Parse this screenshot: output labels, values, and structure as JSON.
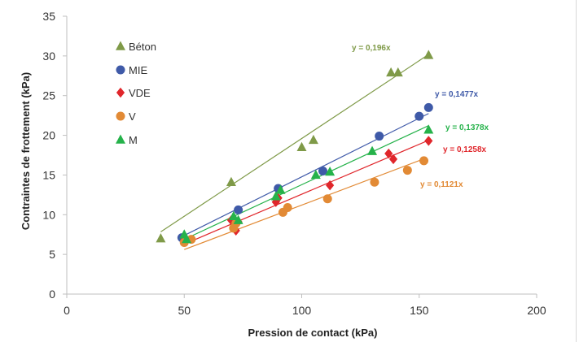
{
  "chart_data": {
    "type": "scatter",
    "xlabel": "Pression de contact (kPa)",
    "ylabel": "Contraintes de frottement (kPa)",
    "xlim": [
      0,
      200
    ],
    "ylim": [
      0,
      35
    ],
    "xticks": [
      "0",
      "50",
      "100",
      "150",
      "200"
    ],
    "yticks": [
      "0",
      "5",
      "10",
      "15",
      "20",
      "25",
      "30",
      "35"
    ],
    "grid": false,
    "legend_position": "top-left",
    "series": [
      {
        "name": "Béton",
        "marker": "triangle",
        "color": "#7f9a48",
        "trendline": {
          "slope": 0.196,
          "equation": "y = 0,196x",
          "x_range": [
            40,
            154
          ]
        },
        "points": [
          [
            40,
            7.0
          ],
          [
            70,
            14.1
          ],
          [
            100,
            18.5
          ],
          [
            105,
            19.4
          ],
          [
            138,
            27.9
          ],
          [
            141,
            27.9
          ],
          [
            154,
            30.1
          ]
        ]
      },
      {
        "name": "MIE",
        "marker": "circle",
        "color": "#3f5aa8",
        "trendline": {
          "slope": 0.1477,
          "equation": "y = 0,1477x",
          "x_range": [
            50,
            154
          ]
        },
        "points": [
          [
            49,
            7.1
          ],
          [
            73,
            10.6
          ],
          [
            90,
            13.3
          ],
          [
            109,
            15.5
          ],
          [
            133,
            19.9
          ],
          [
            150,
            22.4
          ],
          [
            154,
            23.5
          ]
        ]
      },
      {
        "name": "VDE",
        "marker": "diamond",
        "color": "#e0262b",
        "trendline": {
          "slope": 0.1258,
          "equation": "y = 0,1258x",
          "x_range": [
            50,
            154
          ]
        },
        "points": [
          [
            50,
            6.8
          ],
          [
            70,
            9.3
          ],
          [
            72,
            8.0
          ],
          [
            73,
            9.1
          ],
          [
            89,
            11.6
          ],
          [
            90,
            12.1
          ],
          [
            112,
            13.7
          ],
          [
            137,
            17.7
          ],
          [
            139,
            17.0
          ],
          [
            154,
            19.3
          ]
        ]
      },
      {
        "name": "V",
        "marker": "circle",
        "color": "#e28a35",
        "trendline": {
          "slope": 0.1121,
          "equation": "y = 0,1121x",
          "x_range": [
            50,
            152
          ]
        },
        "points": [
          [
            50,
            6.5
          ],
          [
            53,
            6.9
          ],
          [
            71,
            8.3
          ],
          [
            72,
            8.9
          ],
          [
            92,
            10.3
          ],
          [
            94,
            10.9
          ],
          [
            111,
            12.0
          ],
          [
            131,
            14.1
          ],
          [
            145,
            15.6
          ],
          [
            152,
            16.8
          ]
        ]
      },
      {
        "name": "M",
        "marker": "triangle",
        "color": "#25b24a",
        "trendline": {
          "slope": 0.1378,
          "equation": "y = 0,1378x",
          "x_range": [
            50,
            154
          ]
        },
        "points": [
          [
            50,
            7.5
          ],
          [
            51,
            6.9
          ],
          [
            71,
            9.8
          ],
          [
            73,
            9.3
          ],
          [
            89,
            12.3
          ],
          [
            91,
            13.1
          ],
          [
            106,
            15.0
          ],
          [
            112,
            15.4
          ],
          [
            130,
            18.0
          ],
          [
            154,
            20.7
          ]
        ]
      }
    ]
  }
}
